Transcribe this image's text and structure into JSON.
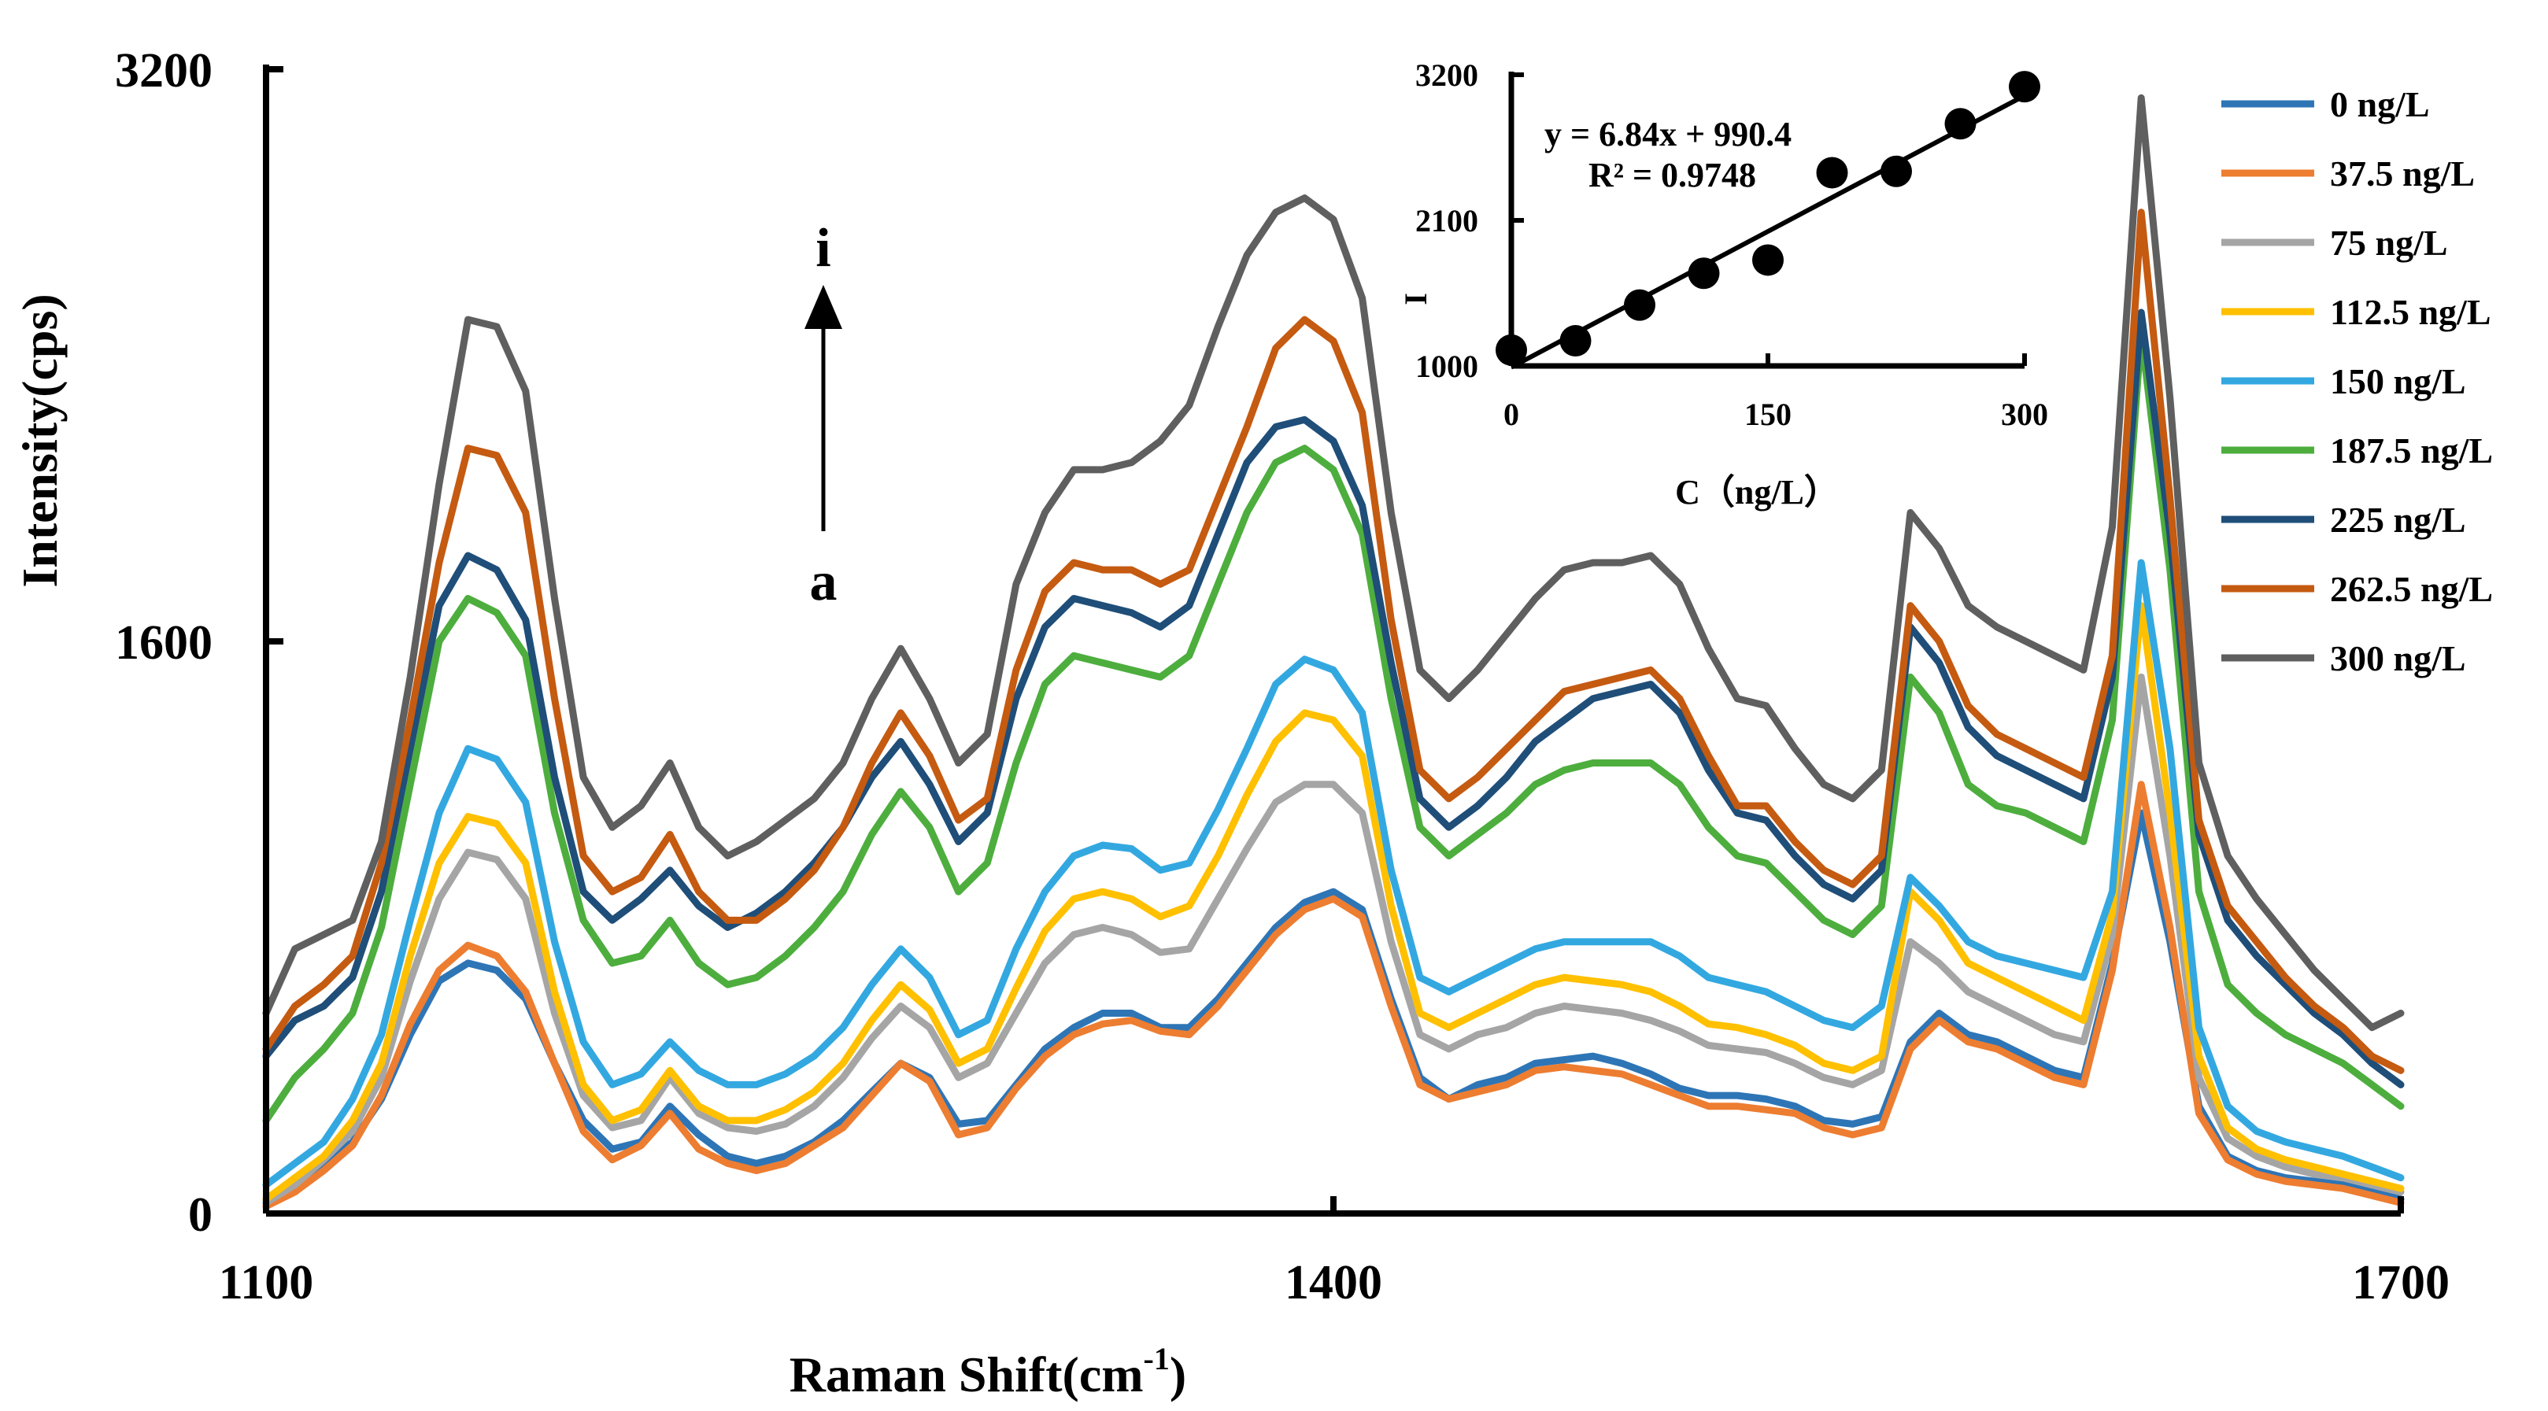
{
  "chart_data": [
    {
      "type": "line",
      "title": "",
      "xlabel": "Raman Shift(cm",
      "xlabel_sup": "-1",
      "xlabel_tail": ")",
      "ylabel": "Intensity(cps)",
      "xlim": [
        1100,
        1700
      ],
      "ylim": [
        0,
        3200
      ],
      "xticks": [
        1100,
        1400,
        1700
      ],
      "yticks": [
        0,
        1600,
        3200
      ],
      "legend_position": "top-right",
      "annotation": {
        "top": "i",
        "bottom": "a"
      },
      "series": [
        {
          "name": "0 ng/L",
          "color": "#2E75B6",
          "values": [
            30,
            80,
            140,
            200,
            320,
            500,
            650,
            700,
            680,
            600,
            420,
            260,
            180,
            200,
            300,
            220,
            160,
            140,
            160,
            200,
            260,
            340,
            420,
            380,
            250,
            260,
            360,
            460,
            520,
            560,
            560,
            520,
            520,
            600,
            700,
            800,
            870,
            900,
            850,
            600,
            380,
            320,
            360,
            380,
            420,
            430,
            440,
            420,
            390,
            350,
            330,
            330,
            320,
            300,
            260,
            250,
            270,
            480,
            560,
            500,
            480,
            440,
            400,
            380,
            700,
            1120,
            760,
            300,
            160,
            120,
            100,
            90,
            80,
            60,
            40
          ]
        },
        {
          "name": "37.5 ng/L",
          "color": "#ED7D31",
          "values": [
            20,
            60,
            120,
            190,
            330,
            530,
            680,
            750,
            720,
            620,
            420,
            230,
            150,
            190,
            280,
            180,
            140,
            120,
            140,
            190,
            240,
            330,
            420,
            370,
            220,
            240,
            350,
            440,
            500,
            530,
            540,
            510,
            500,
            580,
            680,
            780,
            850,
            880,
            830,
            580,
            360,
            320,
            340,
            360,
            400,
            410,
            400,
            390,
            360,
            330,
            300,
            300,
            290,
            280,
            240,
            220,
            240,
            460,
            540,
            480,
            460,
            420,
            380,
            360,
            680,
            1200,
            800,
            280,
            150,
            110,
            90,
            80,
            70,
            50,
            30
          ]
        },
        {
          "name": "75 ng/L",
          "color": "#A5A5A5",
          "values": [
            30,
            80,
            150,
            230,
            380,
            650,
            880,
            1010,
            990,
            880,
            560,
            330,
            240,
            260,
            380,
            280,
            240,
            230,
            250,
            300,
            380,
            490,
            580,
            520,
            380,
            420,
            560,
            700,
            780,
            800,
            780,
            730,
            740,
            880,
            1020,
            1150,
            1200,
            1200,
            1120,
            760,
            500,
            460,
            500,
            520,
            560,
            580,
            570,
            560,
            540,
            510,
            470,
            460,
            450,
            420,
            380,
            360,
            400,
            760,
            700,
            620,
            580,
            540,
            500,
            480,
            780,
            1500,
            1000,
            380,
            210,
            160,
            130,
            110,
            100,
            80,
            60
          ]
        },
        {
          "name": "112.5 ng/L",
          "color": "#FFC000",
          "values": [
            40,
            100,
            160,
            260,
            420,
            720,
            980,
            1110,
            1090,
            980,
            620,
            360,
            260,
            290,
            400,
            300,
            260,
            260,
            290,
            340,
            420,
            540,
            640,
            570,
            420,
            460,
            630,
            790,
            880,
            900,
            880,
            830,
            860,
            1000,
            1170,
            1320,
            1400,
            1380,
            1280,
            860,
            560,
            520,
            560,
            600,
            640,
            660,
            650,
            640,
            620,
            580,
            530,
            520,
            500,
            470,
            420,
            400,
            440,
            900,
            820,
            700,
            660,
            620,
            580,
            540,
            840,
            1700,
            1120,
            440,
            240,
            180,
            150,
            130,
            110,
            90,
            70
          ]
        },
        {
          "name": "150 ng/L",
          "color": "#33A8E0",
          "values": [
            80,
            140,
            200,
            320,
            500,
            820,
            1120,
            1300,
            1270,
            1150,
            760,
            480,
            360,
            390,
            480,
            400,
            360,
            360,
            390,
            440,
            520,
            640,
            740,
            660,
            500,
            540,
            740,
            900,
            1000,
            1030,
            1020,
            960,
            980,
            1130,
            1300,
            1480,
            1550,
            1520,
            1400,
            960,
            660,
            620,
            660,
            700,
            740,
            760,
            760,
            760,
            760,
            720,
            660,
            640,
            620,
            580,
            540,
            520,
            580,
            940,
            860,
            760,
            720,
            700,
            680,
            660,
            900,
            1820,
            1300,
            520,
            300,
            230,
            200,
            180,
            160,
            130,
            100
          ]
        },
        {
          "name": "187.5 ng/L",
          "color": "#4DAE3E",
          "values": [
            260,
            380,
            460,
            560,
            800,
            1200,
            1600,
            1720,
            1680,
            1560,
            1120,
            820,
            700,
            720,
            820,
            700,
            640,
            660,
            720,
            800,
            900,
            1060,
            1180,
            1080,
            900,
            980,
            1260,
            1480,
            1560,
            1540,
            1520,
            1500,
            1560,
            1760,
            1960,
            2100,
            2140,
            2080,
            1900,
            1440,
            1080,
            1000,
            1060,
            1120,
            1200,
            1240,
            1260,
            1260,
            1260,
            1200,
            1080,
            1000,
            980,
            900,
            820,
            780,
            860,
            1500,
            1400,
            1200,
            1140,
            1120,
            1080,
            1040,
            1380,
            2460,
            1800,
            900,
            640,
            560,
            500,
            460,
            420,
            360,
            300
          ]
        },
        {
          "name": "225 ng/L",
          "color": "#1F4E79",
          "values": [
            440,
            540,
            580,
            660,
            900,
            1300,
            1700,
            1840,
            1800,
            1660,
            1220,
            900,
            820,
            880,
            960,
            860,
            800,
            840,
            900,
            980,
            1080,
            1220,
            1320,
            1200,
            1040,
            1120,
            1440,
            1640,
            1720,
            1700,
            1680,
            1640,
            1700,
            1900,
            2100,
            2200,
            2220,
            2160,
            1980,
            1540,
            1160,
            1080,
            1140,
            1220,
            1320,
            1380,
            1440,
            1460,
            1480,
            1400,
            1240,
            1120,
            1100,
            1000,
            920,
            880,
            960,
            1640,
            1540,
            1360,
            1280,
            1240,
            1200,
            1160,
            1500,
            2520,
            1900,
            1060,
            820,
            720,
            640,
            560,
            500,
            420,
            360
          ]
        },
        {
          "name": "262.5 ng/L",
          "color": "#C55A11",
          "values": [
            460,
            580,
            640,
            720,
            980,
            1380,
            1820,
            2140,
            2120,
            1960,
            1440,
            1000,
            900,
            940,
            1060,
            900,
            820,
            820,
            880,
            960,
            1080,
            1260,
            1400,
            1280,
            1100,
            1160,
            1520,
            1740,
            1820,
            1800,
            1800,
            1760,
            1800,
            2000,
            2200,
            2420,
            2500,
            2440,
            2240,
            1660,
            1240,
            1160,
            1220,
            1300,
            1380,
            1460,
            1480,
            1500,
            1520,
            1440,
            1280,
            1140,
            1140,
            1040,
            960,
            920,
            1000,
            1700,
            1600,
            1420,
            1340,
            1300,
            1260,
            1220,
            1560,
            2800,
            2000,
            1100,
            860,
            760,
            660,
            580,
            520,
            440,
            400
          ]
        },
        {
          "name": "300 ng/L",
          "color": "#5F5F5F",
          "values": [
            560,
            740,
            780,
            820,
            1040,
            1500,
            2040,
            2500,
            2480,
            2300,
            1720,
            1220,
            1080,
            1140,
            1260,
            1080,
            1000,
            1040,
            1100,
            1160,
            1260,
            1440,
            1580,
            1440,
            1260,
            1340,
            1760,
            1960,
            2080,
            2080,
            2100,
            2160,
            2260,
            2480,
            2680,
            2800,
            2840,
            2780,
            2560,
            1960,
            1520,
            1440,
            1520,
            1620,
            1720,
            1800,
            1820,
            1820,
            1840,
            1760,
            1580,
            1440,
            1420,
            1300,
            1200,
            1160,
            1240,
            1960,
            1860,
            1700,
            1640,
            1600,
            1560,
            1520,
            1920,
            3120,
            2280,
            1260,
            1000,
            880,
            780,
            680,
            600,
            520,
            560
          ]
        }
      ]
    },
    {
      "type": "scatter",
      "role": "inset",
      "xlabel": "C（ng/L）",
      "ylabel": "I",
      "xlim": [
        0,
        300
      ],
      "ylim": [
        1000,
        3200
      ],
      "xticks": [
        0,
        150,
        300
      ],
      "yticks": [
        1000,
        2100,
        3200
      ],
      "points": [
        {
          "x": 0,
          "y": 1120
        },
        {
          "x": 37.5,
          "y": 1190
        },
        {
          "x": 75,
          "y": 1460
        },
        {
          "x": 112.5,
          "y": 1700
        },
        {
          "x": 150,
          "y": 1800
        },
        {
          "x": 187.5,
          "y": 2460
        },
        {
          "x": 225,
          "y": 2470
        },
        {
          "x": 262.5,
          "y": 2830
        },
        {
          "x": 300,
          "y": 3110
        }
      ],
      "fit": {
        "slope": 6.84,
        "intercept": 990.4
      },
      "equation": "y = 6.84x + 990.4",
      "r2": "R² = 0.9748"
    }
  ]
}
